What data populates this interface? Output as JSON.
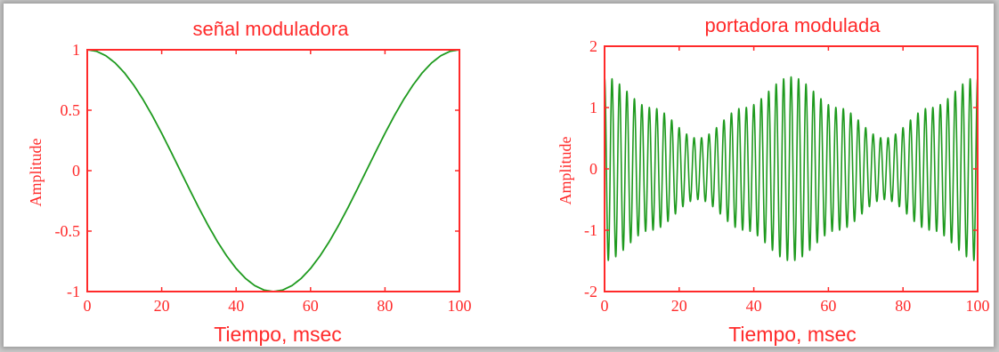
{
  "colors": {
    "accent": "#ff2a2a",
    "series": "#1e9a1e",
    "background": "#ffffff"
  },
  "chart_data": [
    {
      "type": "line",
      "title": "señal moduladora",
      "xlabel": "Tiempo, msec",
      "ylabel": "Amplitude",
      "xlim": [
        0,
        100
      ],
      "ylim": [
        -1,
        1
      ],
      "xticks": [
        0,
        20,
        40,
        60,
        80,
        100
      ],
      "xtick_labels": [
        "0",
        "20",
        "40",
        "60",
        "80",
        "100"
      ],
      "yticks": [
        1,
        0.5,
        0,
        -0.5,
        -1
      ],
      "ytick_labels": [
        "1",
        "0.5",
        "0",
        "-0.5",
        "-1"
      ],
      "grid": false,
      "series": [
        {
          "x": [
            0,
            2.5,
            5,
            7.5,
            10,
            12.5,
            15,
            17.5,
            20,
            22.5,
            25,
            27.5,
            30,
            32.5,
            35,
            37.5,
            40,
            42.5,
            45,
            47.5,
            50,
            52.5,
            55,
            57.5,
            60,
            62.5,
            65,
            67.5,
            70,
            72.5,
            75,
            77.5,
            80,
            82.5,
            85,
            87.5,
            90,
            92.5,
            95,
            97.5,
            100
          ],
          "y": [
            1,
            0.988,
            0.951,
            0.891,
            0.809,
            0.707,
            0.588,
            0.454,
            0.309,
            0.156,
            0,
            -0.156,
            -0.309,
            -0.454,
            -0.588,
            -0.707,
            -0.809,
            -0.891,
            -0.951,
            -0.988,
            -1,
            -0.988,
            -0.951,
            -0.891,
            -0.809,
            -0.707,
            -0.588,
            -0.454,
            -0.309,
            -0.156,
            0,
            0.156,
            0.309,
            0.454,
            0.588,
            0.707,
            0.809,
            0.891,
            0.951,
            0.988,
            1
          ]
        }
      ]
    },
    {
      "type": "line",
      "title": "portadora modulada",
      "xlabel": "Tiempo, msec",
      "ylabel": "Amplitude",
      "xlim": [
        0,
        100
      ],
      "ylim": [
        -2,
        2
      ],
      "xticks": [
        0,
        20,
        40,
        60,
        80,
        100
      ],
      "xtick_labels": [
        "0",
        "20",
        "40",
        "60",
        "80",
        "100"
      ],
      "yticks": [
        2,
        1,
        0,
        -1,
        -2
      ],
      "ytick_labels": [
        "2",
        "1",
        "0",
        "-1",
        "-2"
      ],
      "grid": false,
      "series": [
        {
          "carrier_cycles": 50,
          "envelope": {
            "x": [
              0,
              12.5,
              25,
              37.5,
              50,
              62.5,
              75,
              87.5,
              100
            ],
            "y": [
              1.5,
              1.0,
              0.5,
              1.0,
              1.5,
              1.0,
              0.5,
              1.0,
              1.5
            ]
          }
        }
      ]
    }
  ]
}
